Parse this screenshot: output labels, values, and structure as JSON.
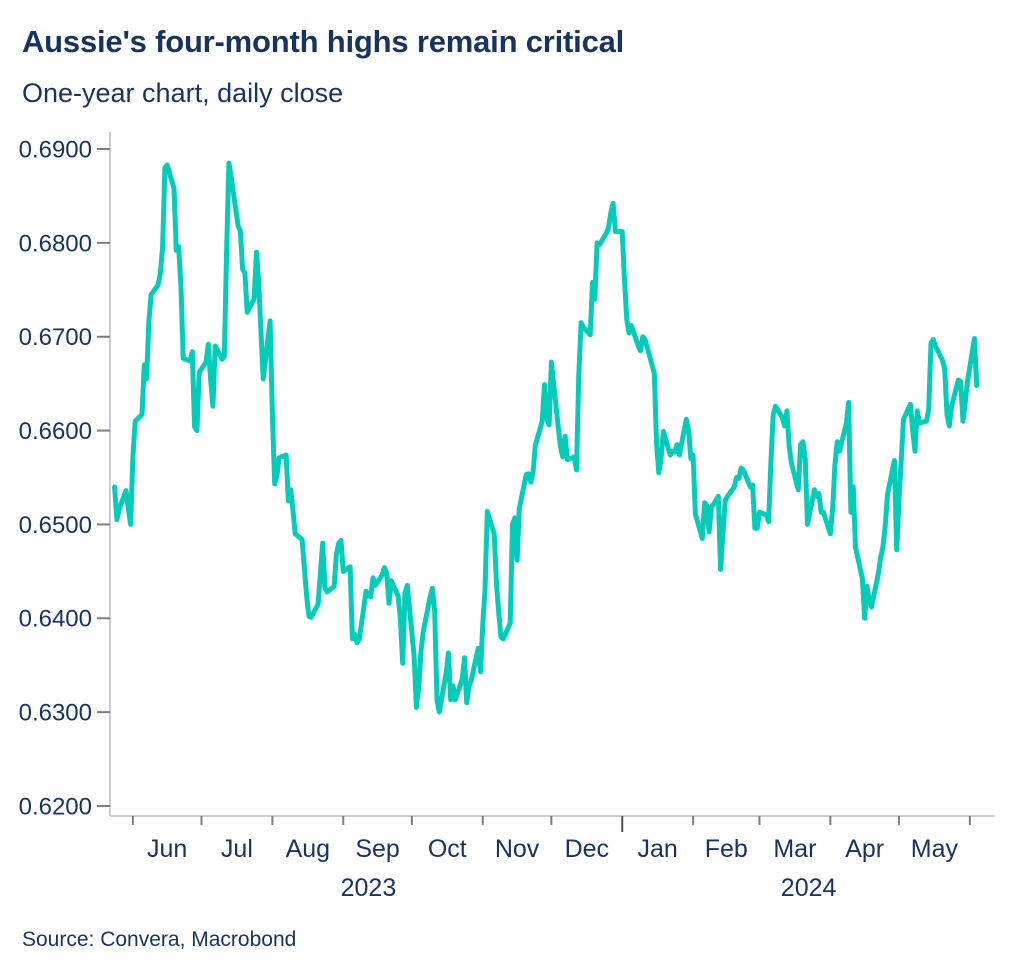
{
  "colors": {
    "line": "#05ccb9",
    "text": "#17335f",
    "axis": "#c9ccd1",
    "tick": "#7a7f85",
    "year_tick": "#4d525a",
    "background": "#ffffff"
  },
  "chart_data": {
    "type": "line",
    "title": "Aussie's four-month highs remain critical",
    "subtitle": "One-year chart, daily close",
    "source": "Source: Convera, Macrobond",
    "xlabel": "",
    "ylabel": "",
    "grid": false,
    "legend_position": "none",
    "x_range": [
      "2023-05-22",
      "2024-06-12"
    ],
    "ylim": [
      0.6189,
      0.6918
    ],
    "y_ticks": [
      0.62,
      0.63,
      0.64,
      0.65,
      0.66,
      0.67,
      0.68,
      0.69
    ],
    "y_tick_decimals": 4,
    "x_tick_labels": [
      "Jun",
      "Jul",
      "Aug",
      "Sep",
      "Oct",
      "Nov",
      "Dec",
      "Jan",
      "Feb",
      "Mar",
      "Apr",
      "May"
    ],
    "year_labels": [
      "2023",
      "2024"
    ],
    "series": [
      {
        "name": "Daily close",
        "frequency": "weekdays",
        "start_date": "2023-05-24",
        "end_date": "2024-06-04",
        "values": [
          0.654,
          0.6505,
          0.6516,
          0.6536,
          0.6517,
          0.65,
          0.6572,
          0.661,
          0.6617,
          0.667,
          0.6655,
          0.6717,
          0.6745,
          0.6755,
          0.6767,
          0.6795,
          0.688,
          0.6883,
          0.6858,
          0.6792,
          0.6796,
          0.6755,
          0.6677,
          0.6674,
          0.6684,
          0.6604,
          0.66,
          0.6662,
          0.6673,
          0.6692,
          0.6655,
          0.6626,
          0.669,
          0.6676,
          0.6679,
          0.679,
          0.6885,
          0.687,
          0.6818,
          0.6813,
          0.6772,
          0.6768,
          0.6726,
          0.674,
          0.679,
          0.676,
          0.6707,
          0.6655,
          0.6717,
          0.6617,
          0.6543,
          0.6552,
          0.6571,
          0.6574,
          0.6525,
          0.6537,
          0.6516,
          0.649,
          0.6484,
          0.6453,
          0.6423,
          0.6402,
          0.6401,
          0.6415,
          0.6448,
          0.648,
          0.6432,
          0.6428,
          0.6434,
          0.6468,
          0.648,
          0.6483,
          0.645,
          0.6455,
          0.6378,
          0.6383,
          0.6374,
          0.6378,
          0.6429,
          0.6424,
          0.6423,
          0.6443,
          0.6435,
          0.6446,
          0.6454,
          0.6448,
          0.6416,
          0.644,
          0.6424,
          0.6399,
          0.6352,
          0.6427,
          0.6435,
          0.636,
          0.6305,
          0.6326,
          0.6365,
          0.6386,
          0.6423,
          0.6432,
          0.6407,
          0.6313,
          0.63,
          0.6342,
          0.6363,
          0.6313,
          0.6328,
          0.6313,
          0.6335,
          0.6358,
          0.631,
          0.6328,
          0.6334,
          0.6368,
          0.6343,
          0.6394,
          0.643,
          0.6514,
          0.649,
          0.6437,
          0.6405,
          0.638,
          0.6378,
          0.6395,
          0.65,
          0.6507,
          0.6462,
          0.6517,
          0.6553,
          0.6554,
          0.6545,
          0.6556,
          0.6584,
          0.661,
          0.6649,
          0.6613,
          0.6606,
          0.6673,
          0.6604,
          0.6583,
          0.6572,
          0.6594,
          0.6569,
          0.6572,
          0.6558,
          0.666,
          0.6715,
          0.671,
          0.6702,
          0.6758,
          0.674,
          0.68,
          0.6798,
          0.681,
          0.6816,
          0.6832,
          0.6842,
          0.6812,
          0.6812,
          0.676,
          0.6718,
          0.6704,
          0.6712,
          0.669,
          0.6685,
          0.67,
          0.6697,
          0.6688,
          0.6661,
          0.6585,
          0.6555,
          0.6571,
          0.6599,
          0.6574,
          0.6578,
          0.6577,
          0.6585,
          0.6574,
          0.6612,
          0.66,
          0.657,
          0.6574,
          0.6511,
          0.6485,
          0.6523,
          0.652,
          0.6492,
          0.6518,
          0.653,
          0.6452,
          0.649,
          0.6525,
          0.653,
          0.654,
          0.655,
          0.6549,
          0.656,
          0.6558,
          0.654,
          0.6542,
          0.6496,
          0.6496,
          0.6513,
          0.651,
          0.6503,
          0.6566,
          0.6617,
          0.6626,
          0.6614,
          0.6605,
          0.6621,
          0.6583,
          0.6565,
          0.6537,
          0.6585,
          0.6588,
          0.657,
          0.65,
          0.6537,
          0.653,
          0.6533,
          0.6513,
          0.6513,
          0.649,
          0.6516,
          0.6563,
          0.6588,
          0.6578,
          0.6608,
          0.663,
          0.6513,
          0.654,
          0.6476,
          0.6442,
          0.64,
          0.6434,
          0.642,
          0.6412,
          0.6448,
          0.6465,
          0.6476,
          0.6498,
          0.6532,
          0.6568,
          0.6473,
          0.6527,
          0.6568,
          0.6612,
          0.6628,
          0.66,
          0.6578,
          0.6621,
          0.6608,
          0.661,
          0.6622,
          0.6693,
          0.6697,
          0.669,
          0.6675,
          0.6666,
          0.6617,
          0.6605,
          0.6626,
          0.6654,
          0.6652,
          0.661,
          0.6631,
          0.6653,
          0.6698,
          0.6648
        ]
      }
    ]
  }
}
